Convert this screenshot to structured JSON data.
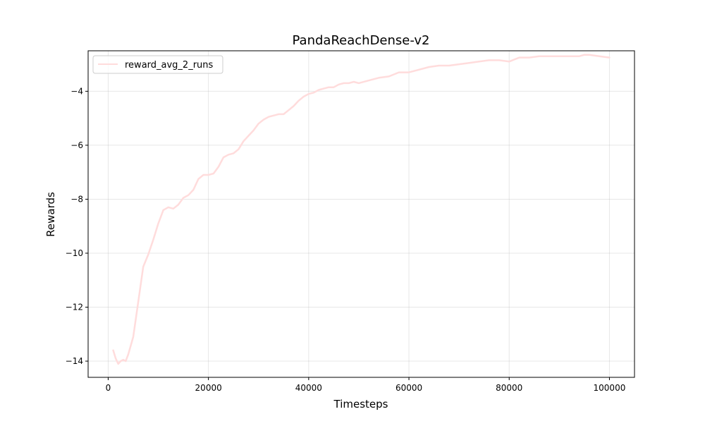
{
  "chart_data": {
    "type": "line",
    "title": "PandaReachDense-v2",
    "xlabel": "Timesteps",
    "ylabel": "Rewards",
    "xlim": [
      -4000,
      105000
    ],
    "ylim": [
      -14.6,
      -2.5
    ],
    "xticks": [
      0,
      20000,
      40000,
      60000,
      80000,
      100000
    ],
    "yticks": [
      -14,
      -12,
      -10,
      -8,
      -6,
      -4
    ],
    "xtick_labels": [
      "0",
      "20000",
      "40000",
      "60000",
      "80000",
      "100000"
    ],
    "ytick_labels": [
      "−14",
      "−12",
      "−10",
      "−8",
      "−6",
      "−4"
    ],
    "grid": true,
    "legend_position": "top-left",
    "series": [
      {
        "name": "reward_avg_2_runs",
        "color": "#ffdcdc",
        "x": [
          1000,
          1500,
          2000,
          2500,
          3000,
          3500,
          4000,
          5000,
          6000,
          7000,
          8000,
          9000,
          10000,
          11000,
          12000,
          13000,
          14000,
          15000,
          16000,
          17000,
          18000,
          19000,
          20000,
          21000,
          22000,
          23000,
          24000,
          25000,
          26000,
          27000,
          28000,
          29000,
          30000,
          31000,
          32000,
          33000,
          34000,
          35000,
          36000,
          37000,
          38000,
          39000,
          40000,
          41000,
          42000,
          43000,
          44000,
          45000,
          46000,
          47000,
          48000,
          49000,
          50000,
          52000,
          54000,
          56000,
          58000,
          60000,
          62000,
          64000,
          66000,
          68000,
          70000,
          72000,
          74000,
          76000,
          78000,
          80000,
          82000,
          84000,
          86000,
          88000,
          90000,
          92000,
          94000,
          95000,
          96000,
          98000,
          100000
        ],
        "y": [
          -13.6,
          -13.9,
          -14.1,
          -14.0,
          -13.95,
          -14.0,
          -13.75,
          -13.1,
          -11.8,
          -10.5,
          -10.05,
          -9.5,
          -8.9,
          -8.4,
          -8.3,
          -8.35,
          -8.2,
          -7.95,
          -7.85,
          -7.65,
          -7.25,
          -7.1,
          -7.1,
          -7.05,
          -6.8,
          -6.45,
          -6.35,
          -6.3,
          -6.15,
          -5.85,
          -5.65,
          -5.45,
          -5.2,
          -5.05,
          -4.95,
          -4.9,
          -4.85,
          -4.85,
          -4.7,
          -4.55,
          -4.35,
          -4.2,
          -4.1,
          -4.05,
          -3.95,
          -3.9,
          -3.85,
          -3.85,
          -3.75,
          -3.7,
          -3.7,
          -3.65,
          -3.7,
          -3.6,
          -3.5,
          -3.45,
          -3.3,
          -3.3,
          -3.2,
          -3.1,
          -3.05,
          -3.05,
          -3.0,
          -2.95,
          -2.9,
          -2.85,
          -2.85,
          -2.9,
          -2.75,
          -2.75,
          -2.7,
          -2.7,
          -2.7,
          -2.7,
          -2.7,
          -2.65,
          -2.65,
          -2.7,
          -2.75
        ]
      }
    ]
  }
}
